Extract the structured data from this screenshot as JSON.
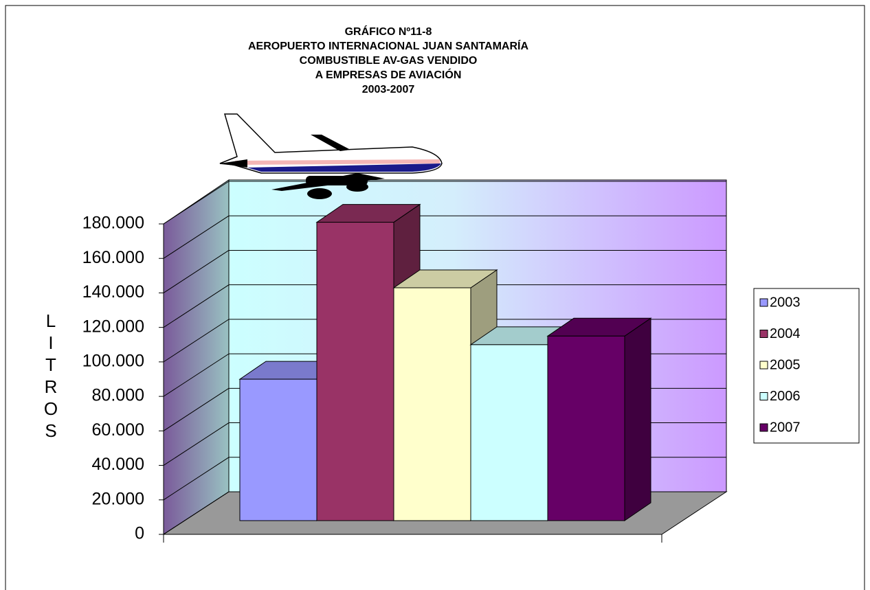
{
  "chart_data": {
    "type": "bar3d",
    "title": [
      "GRÁFICO Nº11-8",
      "AEROPUERTO INTERNACIONAL JUAN SANTAMARÍA",
      "COMBUSTIBLE AV-GAS VENDIDO",
      "A EMPRESAS DE AVIACIÓN",
      "2003-2007"
    ],
    "y_label": "LITROS",
    "categories": [
      null
    ],
    "series": [
      {
        "name": "2003",
        "color": "#9999ff",
        "values": [
          82000
        ]
      },
      {
        "name": "2004",
        "color": "#993366",
        "values": [
          173000
        ]
      },
      {
        "name": "2005",
        "color": "#ffffcc",
        "values": [
          135000
        ]
      },
      {
        "name": "2006",
        "color": "#ccffff",
        "values": [
          102000
        ]
      },
      {
        "name": "2007",
        "color": "#660066",
        "values": [
          107000
        ]
      }
    ],
    "ylim": [
      0,
      180000
    ],
    "yticks": [
      0,
      {
        "value": 20000,
        "label": "20.000"
      },
      {
        "value": 40000,
        "label": "40.000"
      },
      {
        "value": 60000,
        "label": "60.000"
      },
      {
        "value": 80000,
        "label": "80.000"
      },
      {
        "value": 100000,
        "label": "100.000"
      },
      {
        "value": 120000,
        "label": "120.000"
      },
      {
        "value": 140000,
        "label": "140.000"
      },
      {
        "value": 160000,
        "label": "160.000"
      },
      {
        "value": 180000,
        "label": "180.000"
      }
    ],
    "grid": true,
    "legend": "right"
  }
}
